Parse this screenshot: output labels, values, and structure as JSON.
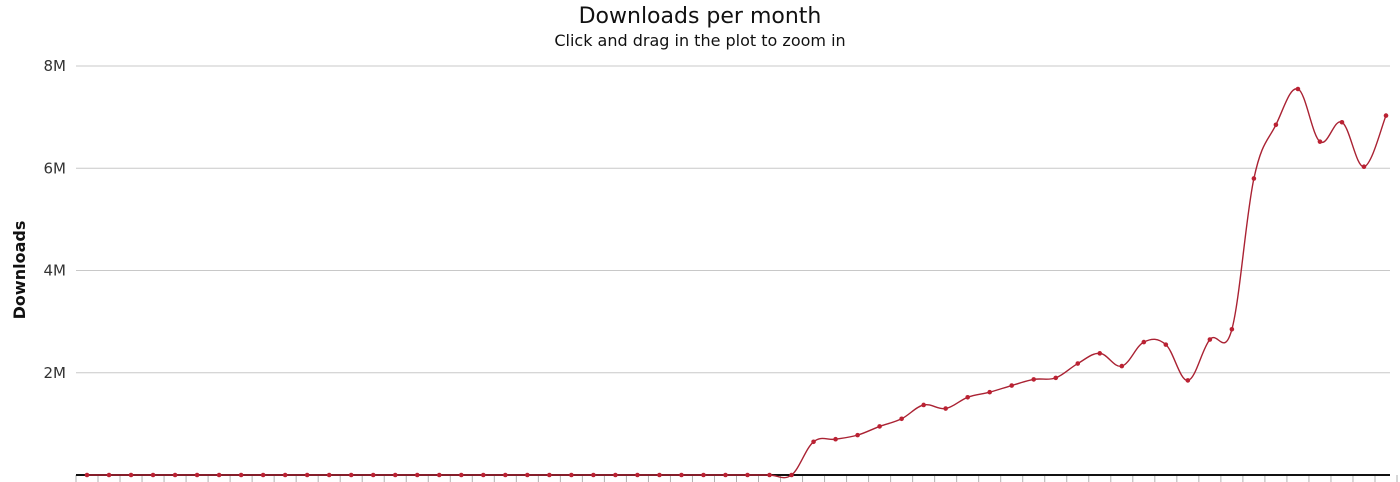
{
  "chart_data": {
    "type": "line",
    "title": "Downloads per month",
    "subtitle": "Click and drag in the plot to zoom in",
    "ylabel": "Downloads",
    "xlabel": "",
    "ylim": [
      0,
      8000000
    ],
    "yticks": [
      {
        "value": 2000000,
        "label": "2M"
      },
      {
        "value": 4000000,
        "label": "4M"
      },
      {
        "value": 6000000,
        "label": "6M"
      },
      {
        "value": 8000000,
        "label": "8M"
      }
    ],
    "grid": true,
    "legend": "none",
    "colors": {
      "series": "#aa2233",
      "marker": "#bb2233",
      "grid": "#c8c8c8",
      "axis": "#111111"
    },
    "series": [
      {
        "values": [
          0,
          0,
          0,
          0,
          0,
          0,
          0,
          0,
          0,
          0,
          0,
          0,
          0,
          0,
          0,
          0,
          0,
          0,
          0,
          0,
          0,
          0,
          0,
          0,
          0,
          0,
          0,
          0,
          0,
          0,
          0,
          0,
          0,
          650000,
          700000,
          780000,
          950000,
          1100000,
          1370000,
          1300000,
          1520000,
          1620000,
          1750000,
          1870000,
          1900000,
          2180000,
          2380000,
          2130000,
          2600000,
          2550000,
          1850000,
          2650000,
          2850000,
          5800000,
          6850000,
          7550000,
          6520000,
          6900000,
          6030000,
          7030000
        ]
      }
    ]
  }
}
